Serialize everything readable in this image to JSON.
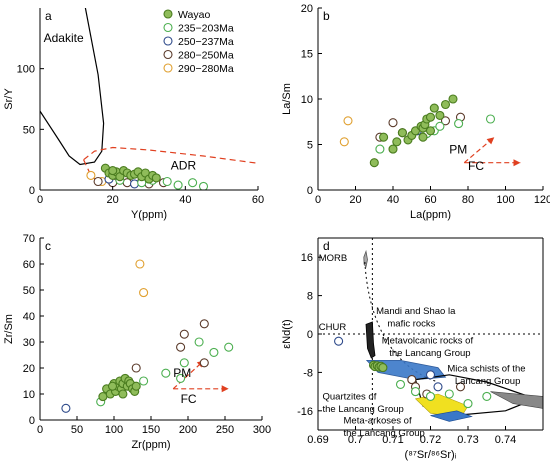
{
  "colors": {
    "Wayao": "#4a7c1f",
    "Wayao_fill": "#8fbc5a",
    "g235": "#4caf50",
    "g250": "#2e4a8a",
    "g280": "#5a3a2a",
    "g290": "#e0a030",
    "dashed_red": "#e04020",
    "blue_field": "#3a78c8",
    "yellow_field": "#f0e020",
    "gray_field": "#888888",
    "dark_field": "#222222"
  },
  "chart_data": [
    {
      "id": "a",
      "type": "scatter",
      "panel_label": "a",
      "xlabel": "Y(ppm)",
      "ylabel": "Sr/Y",
      "xlim": [
        0,
        60
      ],
      "ylim": [
        0,
        150
      ],
      "xticks": [
        0,
        20,
        40,
        60
      ],
      "yticks": [
        0,
        50,
        100
      ],
      "annotations": [
        {
          "text": "Adakite",
          "x": 1,
          "y": 122
        },
        {
          "text": "ADR",
          "x": 36,
          "y": 17
        }
      ],
      "legend": {
        "placement": "top-right",
        "entries": [
          {
            "key": "Wayao",
            "label": "Wayao"
          },
          {
            "key": "g235",
            "label": "235−203Ma"
          },
          {
            "key": "g250",
            "label": "250−237Ma"
          },
          {
            "key": "g280",
            "label": "280−250Ma"
          },
          {
            "key": "g290",
            "label": "290−280Ma"
          }
        ]
      },
      "curves": [
        {
          "style": "solid",
          "points": [
            [
              12.5,
              150
            ],
            [
              16,
              95
            ],
            [
              17.5,
              55
            ],
            [
              17,
              32
            ],
            [
              15,
              23
            ],
            [
              11,
              21
            ],
            [
              8,
              28
            ],
            [
              5,
              42
            ],
            [
              0,
              65
            ]
          ]
        },
        {
          "style": "dashed",
          "points": [
            [
              12,
              25
            ],
            [
              15,
              32
            ],
            [
              20,
              35
            ],
            [
              30,
              33
            ],
            [
              45,
              28
            ],
            [
              60,
              22
            ]
          ]
        },
        {
          "style": "dashed",
          "points": [
            [
              12,
              25
            ],
            [
              14,
              12
            ],
            [
              17,
              4
            ]
          ]
        }
      ],
      "series": [
        {
          "key": "Wayao",
          "points": [
            [
              18,
              18
            ],
            [
              19,
              14
            ],
            [
              20,
              12
            ],
            [
              21,
              15
            ],
            [
              22,
              11
            ],
            [
              23,
              16
            ],
            [
              24,
              14
            ],
            [
              25,
              12
            ],
            [
              26,
              13
            ],
            [
              27,
              15
            ],
            [
              28,
              11
            ],
            [
              29,
              14
            ],
            [
              30,
              9
            ],
            [
              31,
              12
            ],
            [
              32,
              10
            ],
            [
              20,
              16
            ]
          ]
        },
        {
          "key": "g235",
          "points": [
            [
              22,
              8
            ],
            [
              28,
              6
            ],
            [
              35,
              7
            ],
            [
              38,
              4
            ],
            [
              45,
              3
            ],
            [
              42,
              6
            ],
            [
              31,
              8
            ]
          ]
        },
        {
          "key": "g250",
          "points": [
            [
              19,
              9
            ],
            [
              26,
              5
            ]
          ]
        },
        {
          "key": "g280",
          "points": [
            [
              16,
              7
            ],
            [
              20,
              6
            ],
            [
              24,
              6
            ],
            [
              30,
              5
            ],
            [
              34,
              6
            ],
            [
              28,
              7
            ]
          ]
        },
        {
          "key": "g290",
          "points": [
            [
              14,
              12
            ],
            [
              17,
              7
            ]
          ]
        }
      ]
    },
    {
      "id": "b",
      "type": "scatter",
      "panel_label": "b",
      "xlabel": "La(ppm)",
      "ylabel": "La/Sm",
      "xlim": [
        0,
        120
      ],
      "ylim": [
        0,
        20
      ],
      "xticks": [
        0,
        20,
        40,
        60,
        80,
        100,
        120
      ],
      "yticks": [
        0,
        5,
        10,
        15,
        20
      ],
      "annotations": [
        {
          "text": "PM",
          "x": 70,
          "y": 4.0
        },
        {
          "text": "FC",
          "x": 80,
          "y": 2.2
        }
      ],
      "arrows": [
        {
          "from": [
            78,
            3
          ],
          "to": [
            94,
            5.8
          ]
        },
        {
          "from": [
            78,
            3
          ],
          "to": [
            108,
            3
          ]
        }
      ],
      "series": [
        {
          "key": "Wayao",
          "points": [
            [
              30,
              3
            ],
            [
              35,
              5.8
            ],
            [
              40,
              4.5
            ],
            [
              42,
              5.3
            ],
            [
              45,
              6.3
            ],
            [
              48,
              5.5
            ],
            [
              50,
              6
            ],
            [
              52,
              6.5
            ],
            [
              55,
              7
            ],
            [
              56,
              6.8
            ],
            [
              57,
              7.2
            ],
            [
              58,
              7.8
            ],
            [
              60,
              8
            ],
            [
              62,
              9
            ],
            [
              65,
              8.2
            ],
            [
              68,
              9.4
            ],
            [
              72,
              10
            ],
            [
              56,
              5.8
            ],
            [
              60,
              6.5
            ]
          ]
        },
        {
          "key": "g235",
          "points": [
            [
              33,
              4.5
            ],
            [
              58,
              6.2
            ],
            [
              62,
              6.5
            ],
            [
              65,
              7
            ],
            [
              75,
              7.3
            ],
            [
              92,
              7.8
            ]
          ]
        },
        {
          "key": "g250",
          "points": [
            [
              53,
              6.5
            ]
          ]
        },
        {
          "key": "g280",
          "points": [
            [
              33,
              5.8
            ],
            [
              40,
              7.4
            ],
            [
              45,
              6.3
            ],
            [
              68,
              7.6
            ],
            [
              76,
              8
            ]
          ]
        },
        {
          "key": "g290",
          "points": [
            [
              14,
              5.3
            ],
            [
              16,
              7.6
            ]
          ]
        }
      ]
    },
    {
      "id": "c",
      "type": "scatter",
      "panel_label": "c",
      "xlabel": "Zr(ppm)",
      "ylabel": "Zr/Sm",
      "xlim": [
        0,
        300
      ],
      "ylim": [
        0,
        70
      ],
      "xticks": [
        0,
        50,
        100,
        150,
        200,
        250,
        300
      ],
      "yticks": [
        0,
        10,
        20,
        30,
        40,
        50,
        60,
        70
      ],
      "annotations": [
        {
          "text": "PM",
          "x": 180,
          "y": 16.5
        },
        {
          "text": "FC",
          "x": 190,
          "y": 6.5
        }
      ],
      "arrows": [
        {
          "from": [
            180,
            12
          ],
          "to": [
            222,
            23
          ]
        },
        {
          "from": [
            180,
            12
          ],
          "to": [
            255,
            12
          ]
        }
      ],
      "series": [
        {
          "key": "Wayao",
          "points": [
            [
              85,
              9
            ],
            [
              90,
              12
            ],
            [
              95,
              10
            ],
            [
              100,
              14
            ],
            [
              102,
              11
            ],
            [
              105,
              13
            ],
            [
              108,
              15
            ],
            [
              110,
              12
            ],
            [
              112,
              14
            ],
            [
              115,
              16
            ],
            [
              118,
              13
            ],
            [
              120,
              15
            ],
            [
              122,
              14
            ],
            [
              125,
              12
            ],
            [
              128,
              11
            ],
            [
              130,
              13
            ],
            [
              112,
              10
            ],
            [
              98,
              13
            ]
          ]
        },
        {
          "key": "g235",
          "points": [
            [
              82,
              7
            ],
            [
              140,
              15
            ],
            [
              170,
              18
            ],
            [
              195,
              22
            ],
            [
              215,
              30
            ],
            [
              235,
              26
            ],
            [
              255,
              28
            ],
            [
              190,
              16
            ]
          ]
        },
        {
          "key": "g250",
          "points": [
            [
              35,
              4.5
            ]
          ]
        },
        {
          "key": "g280",
          "points": [
            [
              130,
              20
            ],
            [
              190,
              28
            ],
            [
              195,
              33
            ],
            [
              222,
              37
            ],
            [
              222,
              22
            ]
          ]
        },
        {
          "key": "g290",
          "points": [
            [
              135,
              60
            ],
            [
              140,
              49
            ]
          ]
        }
      ]
    },
    {
      "id": "d",
      "type": "scatter",
      "panel_label": "d",
      "xlabel": "(⁸⁷Sr/⁸⁶Sr)ᵢ",
      "ylabel": "εNd(t)",
      "xlim": [
        0.69,
        0.75
      ],
      "ylim": [
        -20,
        20
      ],
      "xticks": [
        0.69,
        0.7,
        0.71,
        0.72,
        0.73,
        0.74
      ],
      "yticks": [
        -16,
        -8,
        0,
        8,
        16
      ],
      "field_labels": [
        {
          "text": "MORB",
          "x": 0.6902,
          "y": 15.2
        },
        {
          "text": "CHUR",
          "x": 0.6902,
          "y": 0.8
        },
        {
          "text": "Mandi and Shao la",
          "x": 0.7055,
          "y": 4.2
        },
        {
          "text": "mafic rocks",
          "x": 0.7085,
          "y": 1.6
        },
        {
          "text": "Metavolcanic rocks of",
          "x": 0.707,
          "y": -2.0
        },
        {
          "text": "the Lancang Group",
          "x": 0.709,
          "y": -4.6
        },
        {
          "text": "Mica schists of the",
          "x": 0.7245,
          "y": -7.8
        },
        {
          "text": "Lancang Group",
          "x": 0.7265,
          "y": -10.4
        },
        {
          "text": "Quartzites of",
          "x": 0.6912,
          "y": -13.6
        },
        {
          "text": "the Lancang Group",
          "x": 0.6912,
          "y": -16.2
        },
        {
          "text": "Meta-arkoses of",
          "x": 0.6968,
          "y": -18.6
        },
        {
          "text": "the Lancang Group",
          "x": 0.6968,
          "y": -21.2
        }
      ],
      "series": [
        {
          "key": "Wayao",
          "points": [
            [
              0.7048,
              -6.5
            ],
            [
              0.7052,
              -6.8
            ],
            [
              0.7058,
              -6.6
            ],
            [
              0.7063,
              -6.9
            ],
            [
              0.7068,
              -6.7
            ],
            [
              0.7073,
              -7.0
            ]
          ]
        },
        {
          "key": "g235",
          "points": [
            [
              0.712,
              -10.5
            ],
            [
              0.716,
              -12
            ],
            [
              0.72,
              -13
            ],
            [
              0.725,
              -12.5
            ],
            [
              0.73,
              -14.5
            ],
            [
              0.735,
              -13
            ]
          ]
        },
        {
          "key": "g250",
          "points": [
            [
              0.6955,
              -1.5
            ],
            [
              0.722,
              -11
            ],
            [
              0.72,
              -8.5
            ]
          ]
        },
        {
          "key": "g280",
          "points": [
            [
              0.715,
              -9.5
            ],
            [
              0.716,
              -11
            ],
            [
              0.728,
              -11
            ],
            [
              0.719,
              -12.5
            ]
          ]
        },
        {
          "key": "g290",
          "points": []
        }
      ]
    }
  ]
}
